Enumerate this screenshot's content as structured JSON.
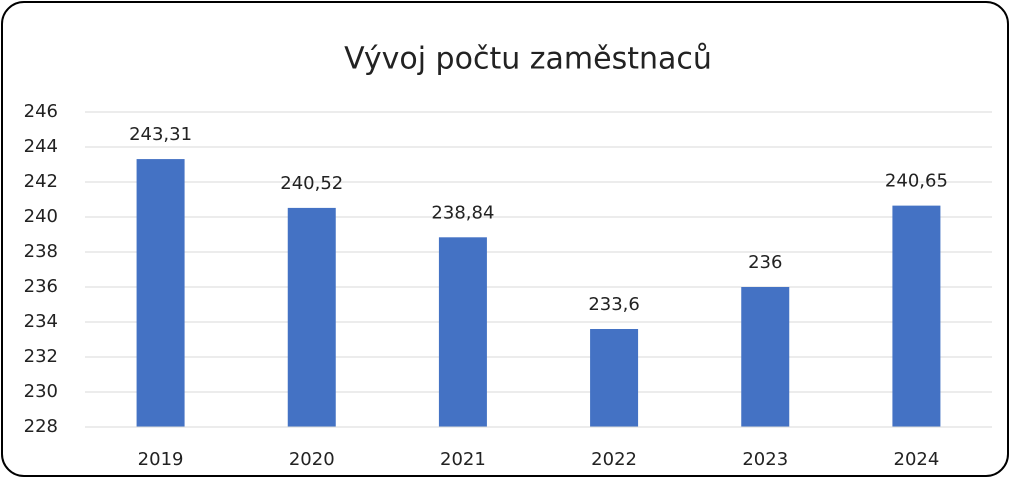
{
  "chart_data": {
    "type": "bar",
    "title": "Vývoj počtu zaměstnaců",
    "categories": [
      "2019",
      "2020",
      "2021",
      "2022",
      "2023",
      "2024"
    ],
    "values": [
      243.31,
      240.52,
      238.84,
      233.6,
      236,
      240.65
    ],
    "value_labels": [
      "243,31",
      "240,52",
      "238,84",
      "233,6",
      "236",
      "240,65"
    ],
    "color": "#4472c4",
    "ylim": [
      228,
      246
    ],
    "yticks": [
      228,
      230,
      232,
      234,
      236,
      238,
      240,
      242,
      244,
      246
    ],
    "grid": true
  }
}
